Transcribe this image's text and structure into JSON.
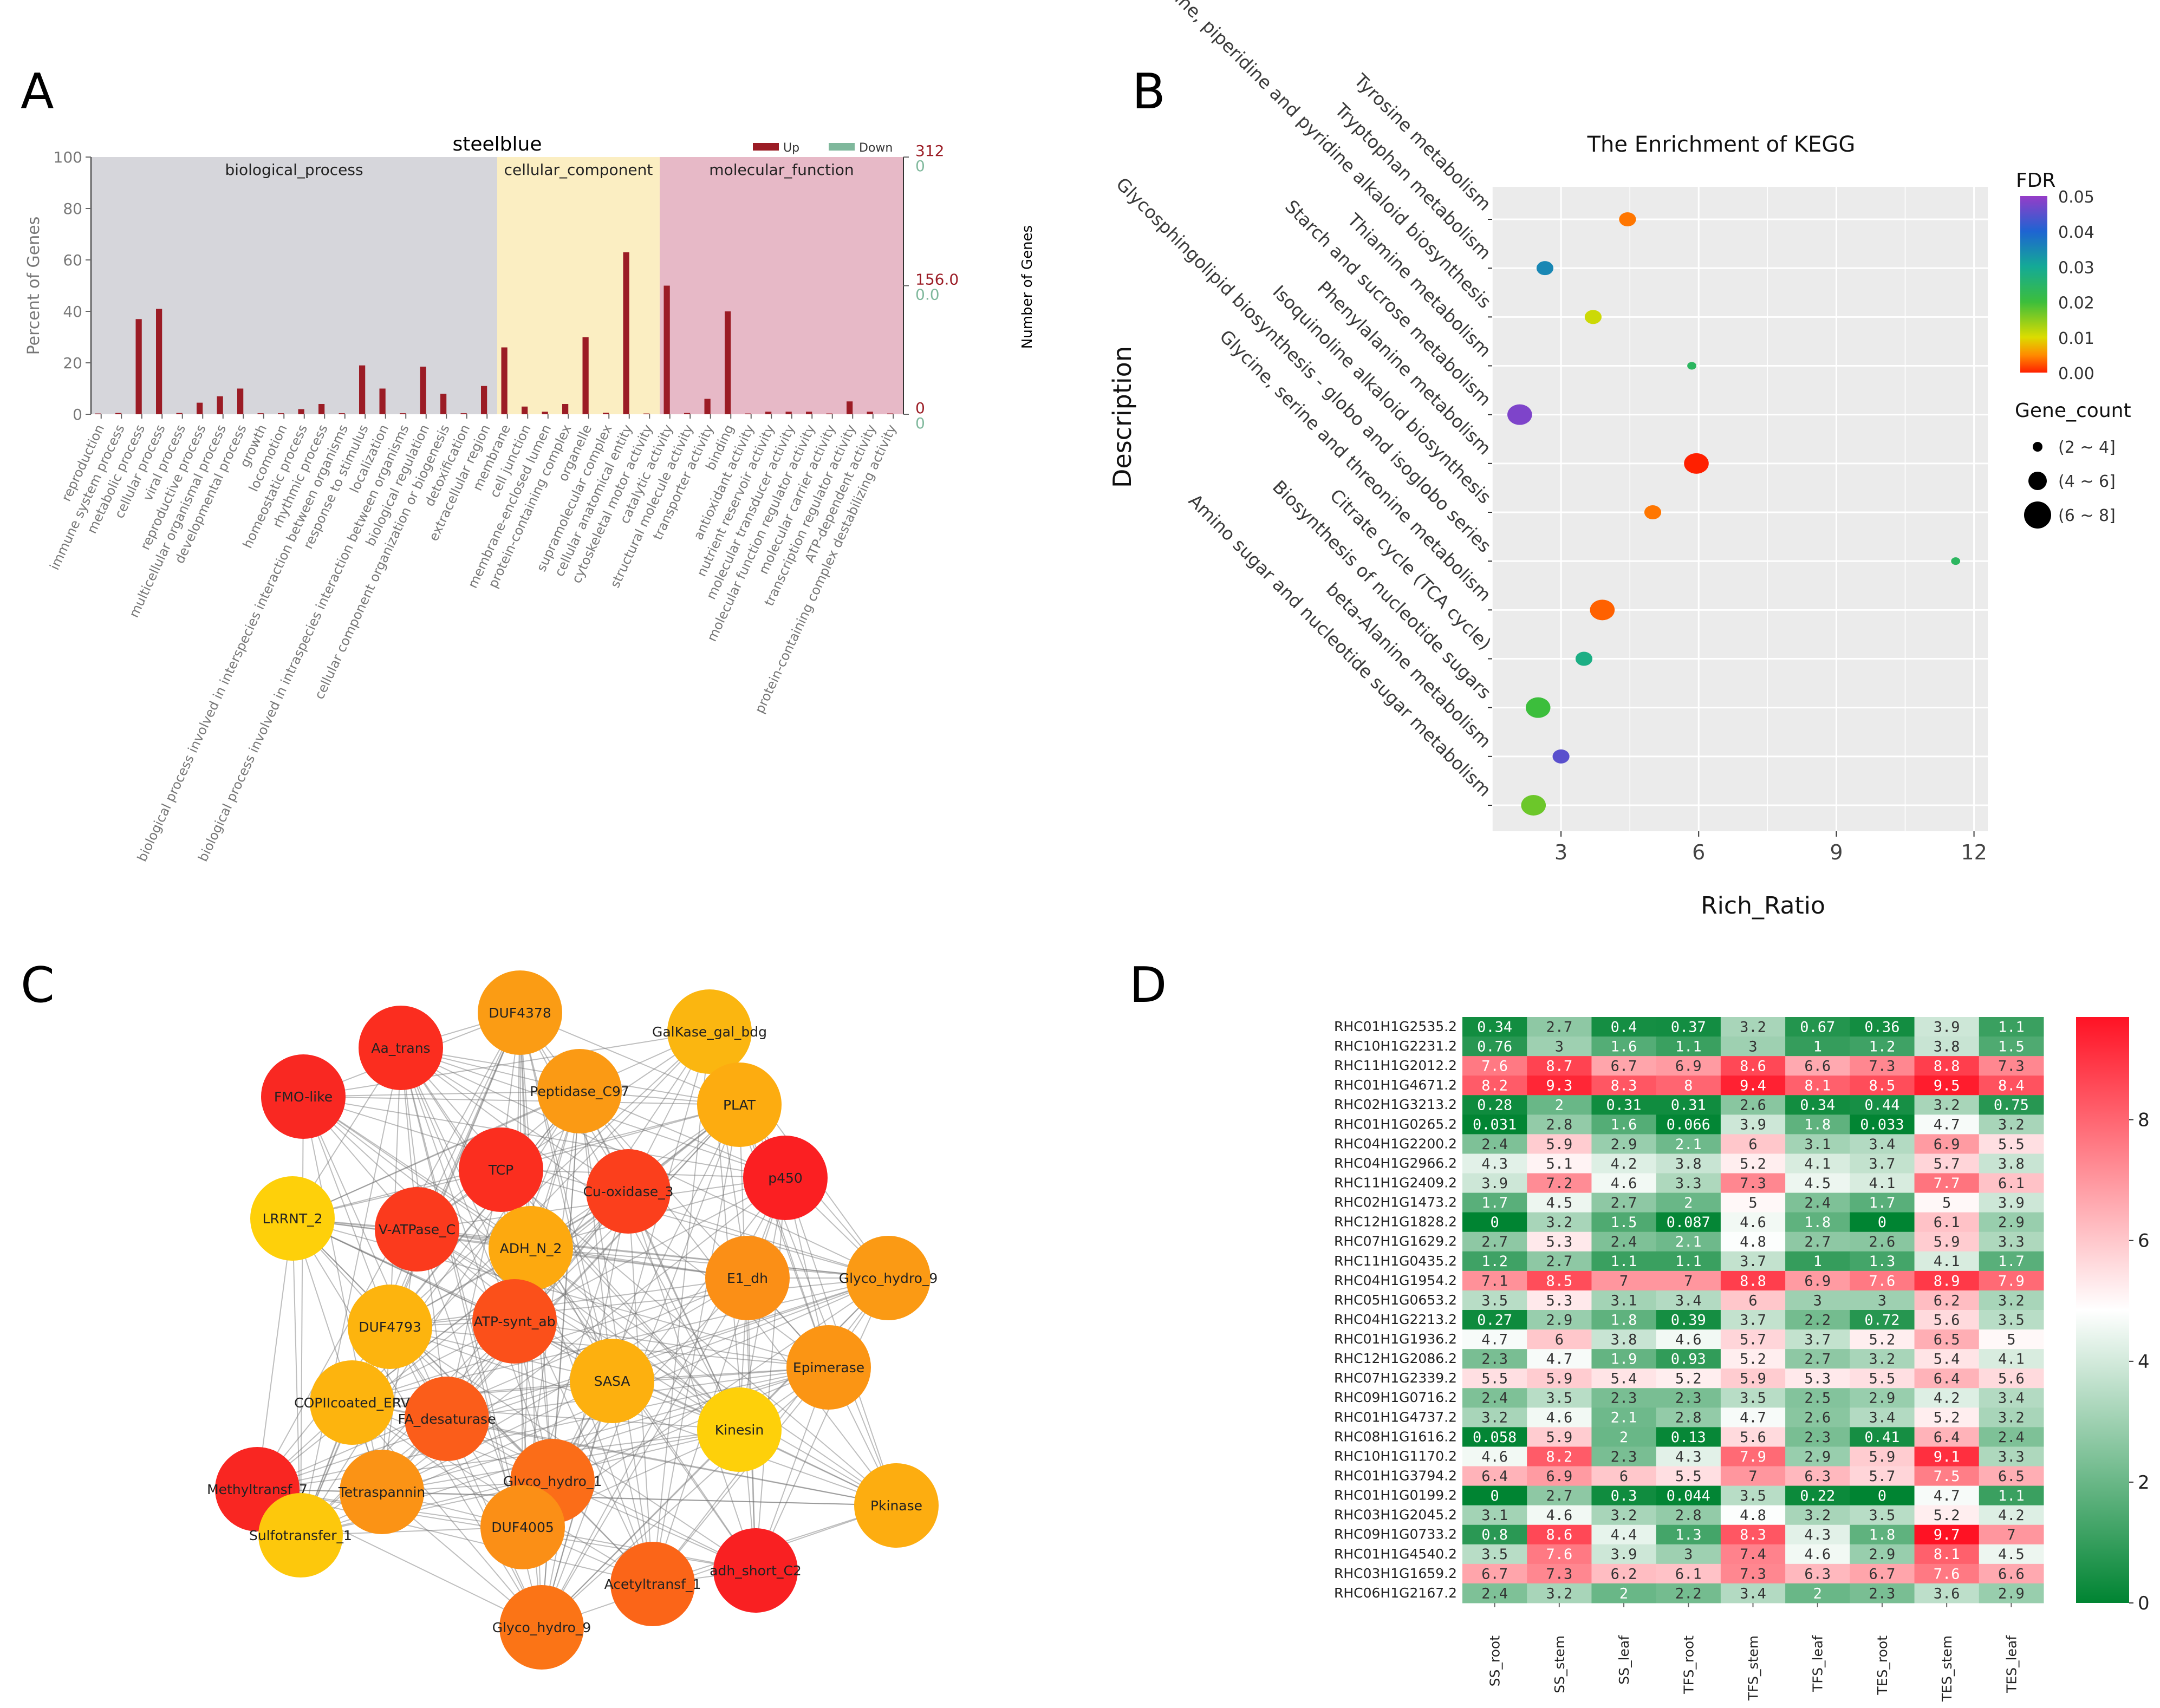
{
  "figure": {
    "panel_labels": [
      "A",
      "B",
      "C",
      "D"
    ]
  },
  "chart_data": [
    {
      "panel": "A",
      "type": "bar",
      "title": "steelblue",
      "ylabel": "Percent of Genes",
      "ylabel_right": "Number of Genes",
      "ylim": [
        0,
        100
      ],
      "yticks": [
        0,
        20,
        40,
        60,
        80,
        100
      ],
      "right_ticks": [
        {
          "value": 100,
          "up": "312",
          "down": "0"
        },
        {
          "value": 50,
          "up": "156.0",
          "down": "0.0"
        },
        {
          "value": 0,
          "up": "0",
          "down": "0"
        }
      ],
      "legend": [
        {
          "name": "Up",
          "color": "#9b1c25"
        },
        {
          "name": "Down",
          "color": "#7fb89c"
        }
      ],
      "colors": {
        "up": "#9b1c25",
        "down": "#7fb89c",
        "biological_process": "#d6d6db",
        "cellular_component": "#fbeec2",
        "molecular_function": "#e7b9c7"
      },
      "sections": [
        {
          "name": "biological_process",
          "start": 0,
          "end": 19
        },
        {
          "name": "cellular_component",
          "start": 20,
          "end": 27
        },
        {
          "name": "molecular_function",
          "start": 28,
          "end": 39
        }
      ],
      "categories": [
        "reproduction",
        "immune system process",
        "metabolic process",
        "cellular process",
        "viral process",
        "reproductive process",
        "multicellular organismal process",
        "developmental process",
        "growth",
        "locomotion",
        "homeostatic process",
        "rhythmic process",
        "biological process involved in interspecies interaction between organisms",
        "response to stimulus",
        "localization",
        "biological process involved in intraspecies interaction between organisms",
        "biological regulation",
        "cellular component organization or biogenesis",
        "detoxification",
        "extracellular region",
        "membrane",
        "cell junction",
        "membrane-enclosed lumen",
        "protein-containing complex",
        "organelle",
        "supramolecular complex",
        "cellular anatomical entity",
        "cytoskeletal motor activity",
        "catalytic activity",
        "structural molecule activity",
        "transporter activity",
        "binding",
        "antioxidant activity",
        "nutrient reservoir activity",
        "molecular transducer activity",
        "molecular function regulator activity",
        "molecular carrier activity",
        "transcription regulator activity",
        "ATP-dependent activity",
        "protein-containing complex destabilizing activity"
      ],
      "series": [
        {
          "name": "Up",
          "values": [
            0.3,
            0.5,
            37,
            41,
            0.5,
            4.5,
            7,
            10,
            0.4,
            0.4,
            2,
            4,
            0.4,
            19,
            10,
            0.4,
            18.5,
            8,
            0.4,
            11,
            26,
            3,
            1,
            4,
            30,
            0.6,
            63,
            0.3,
            50,
            0.5,
            6,
            40,
            0.3,
            1,
            1,
            1,
            0.3,
            5,
            1,
            0.3
          ]
        },
        {
          "name": "Down",
          "values": [
            0,
            0,
            0,
            0,
            0,
            0,
            0,
            0,
            0,
            0,
            0,
            0,
            0,
            0,
            0,
            0,
            0,
            0,
            0,
            0,
            0,
            0,
            0,
            0,
            0,
            0,
            0,
            0,
            0,
            0,
            0,
            0,
            0,
            0,
            0,
            0,
            0,
            0,
            0,
            0
          ]
        }
      ]
    },
    {
      "panel": "B",
      "type": "scatter",
      "title": "The Enrichment of KEGG",
      "xlabel": "Rich_Ratio",
      "ylabel": "Description",
      "xlim": [
        1.5,
        12.3
      ],
      "xticks": [
        3,
        6,
        9,
        12
      ],
      "color_legend": {
        "title": "FDR",
        "ticks": [
          "0.05",
          "0.04",
          "0.03",
          "0.02",
          "0.01",
          "0.00"
        ]
      },
      "size_legend": {
        "title": "Gene_count",
        "items": [
          "(2 ~ 4]",
          "(4 ~ 6]",
          "(6 ~ 8]"
        ]
      },
      "points": [
        {
          "label": "Tyrosine metabolism",
          "x": 4.45,
          "count": 4,
          "fdr": 0.004
        },
        {
          "label": "Tryptophan metabolism",
          "x": 2.65,
          "count": 4,
          "fdr": 0.035
        },
        {
          "label": "Tropane, piperidine and pyridine alkaloid biosynthesis",
          "x": 3.7,
          "count": 4,
          "fdr": 0.011
        },
        {
          "label": "Thiamine metabolism",
          "x": 5.85,
          "count": 2,
          "fdr": 0.024
        },
        {
          "label": "Starch and sucrose metabolism",
          "x": 2.1,
          "count": 6,
          "fdr": 0.048
        },
        {
          "label": "Phenylalanine metabolism",
          "x": 5.95,
          "count": 6,
          "fdr": 0.0
        },
        {
          "label": "Isoquinoline alkaloid biosynthesis",
          "x": 5.0,
          "count": 4,
          "fdr": 0.004
        },
        {
          "label": "Glycosphingolipid biosynthesis - globo and isoglobo series",
          "x": 11.6,
          "count": 2,
          "fdr": 0.024
        },
        {
          "label": "Glycine, serine and threonine metabolism",
          "x": 3.9,
          "count": 6,
          "fdr": 0.003
        },
        {
          "label": "Citrate cycle (TCA cycle)",
          "x": 3.5,
          "count": 4,
          "fdr": 0.028
        },
        {
          "label": "Biosynthesis of nucleotide sugars",
          "x": 2.5,
          "count": 6,
          "fdr": 0.02
        },
        {
          "label": "beta-Alanine metabolism",
          "x": 3.0,
          "count": 4,
          "fdr": 0.045
        },
        {
          "label": "Amino sugar and nucleotide sugar metabolism",
          "x": 2.4,
          "count": 6,
          "fdr": 0.017
        }
      ]
    },
    {
      "panel": "C",
      "type": "network",
      "nodes": [
        {
          "name": "DUF4378",
          "color": "#fb9c14"
        },
        {
          "name": "Aa_trans",
          "color": "#fb2d1f"
        },
        {
          "name": "GalKase_gal_bdg",
          "color": "#fbb610"
        },
        {
          "name": "FMO-like",
          "color": "#f92822"
        },
        {
          "name": "Peptidase_C97",
          "color": "#fb9a14"
        },
        {
          "name": "PLAT",
          "color": "#fdac10"
        },
        {
          "name": "TCP",
          "color": "#fb2e1f"
        },
        {
          "name": "Cu-oxidase_3",
          "color": "#fb3f1c"
        },
        {
          "name": "p450",
          "color": "#fb1f22"
        },
        {
          "name": "LRRNT_2",
          "color": "#fed00a"
        },
        {
          "name": "V-ATPase_C",
          "color": "#fb3a1d"
        },
        {
          "name": "ADH_N_2",
          "color": "#fda90f"
        },
        {
          "name": "E1_dh",
          "color": "#fb8f16"
        },
        {
          "name": "Glyco_hydro_9",
          "color": "#fb9a14"
        },
        {
          "name": "DUF4793",
          "color": "#fdb40e"
        },
        {
          "name": "ATP-synt_ab",
          "color": "#fb501a"
        },
        {
          "name": "SASA",
          "color": "#fdb00f"
        },
        {
          "name": "Epimerase",
          "color": "#fb9514"
        },
        {
          "name": "COPIIcoated_ERV",
          "color": "#fdb40e"
        },
        {
          "name": "FA_desaturase",
          "color": "#fb5d1a"
        },
        {
          "name": "Kinesin",
          "color": "#fed00a"
        },
        {
          "name": "Methyltransf_7",
          "color": "#f92622"
        },
        {
          "name": "Glyco_hydro_1",
          "color": "#fb6d18"
        },
        {
          "name": "Tetraspannin",
          "color": "#fb9315"
        },
        {
          "name": "Pkinase",
          "color": "#fdad10"
        },
        {
          "name": "Sulfotransfer_1",
          "color": "#fdc80c"
        },
        {
          "name": "DUF4005",
          "color": "#fb8f16"
        },
        {
          "name": "adh_short_C2",
          "color": "#f92022"
        },
        {
          "name": "Acetyltransf_1",
          "color": "#fb6518"
        },
        {
          "name": "Glyco_hydro_9",
          "color": "#fb7416"
        }
      ]
    },
    {
      "panel": "D",
      "type": "heatmap",
      "columns": [
        "SS_root",
        "SS_stem",
        "SS_leaf",
        "TFS_root",
        "TFS_stem",
        "TFS_leaf",
        "TES_root",
        "TES_stem",
        "TES_leaf"
      ],
      "colorbar_ticks": [
        "0",
        "2",
        "4",
        "6",
        "8"
      ],
      "range": [
        0,
        9.7
      ],
      "rows": [
        {
          "name": "RHC01H1G2535.2",
          "values": [
            "0.34",
            "2.7",
            "0.4",
            "0.37",
            "3.2",
            "0.67",
            "0.36",
            "3.9",
            "1.1"
          ]
        },
        {
          "name": "RHC10H1G2231.2",
          "values": [
            "0.76",
            "3",
            "1.6",
            "1.1",
            "3",
            "1",
            "1.2",
            "3.8",
            "1.5"
          ]
        },
        {
          "name": "RHC11H1G2012.2",
          "values": [
            "7.6",
            "8.7",
            "6.7",
            "6.9",
            "8.6",
            "6.6",
            "7.3",
            "8.8",
            "7.3"
          ]
        },
        {
          "name": "RHC01H1G4671.2",
          "values": [
            "8.2",
            "9.3",
            "8.3",
            "8",
            "9.4",
            "8.1",
            "8.5",
            "9.5",
            "8.4"
          ]
        },
        {
          "name": "RHC02H1G3213.2",
          "values": [
            "0.28",
            "2",
            "0.31",
            "0.31",
            "2.6",
            "0.34",
            "0.44",
            "3.2",
            "0.75"
          ]
        },
        {
          "name": "RHC01H1G0265.2",
          "values": [
            "0.031",
            "2.8",
            "1.6",
            "0.066",
            "3.9",
            "1.8",
            "0.033",
            "4.7",
            "3.2"
          ]
        },
        {
          "name": "RHC04H1G2200.2",
          "values": [
            "2.4",
            "5.9",
            "2.9",
            "2.1",
            "6",
            "3.1",
            "3.4",
            "6.9",
            "5.5"
          ]
        },
        {
          "name": "RHC04H1G2966.2",
          "values": [
            "4.3",
            "5.1",
            "4.2",
            "3.8",
            "5.2",
            "4.1",
            "3.7",
            "5.7",
            "3.8"
          ]
        },
        {
          "name": "RHC11H1G2409.2",
          "values": [
            "3.9",
            "7.2",
            "4.6",
            "3.3",
            "7.3",
            "4.5",
            "4.1",
            "7.7",
            "6.1"
          ]
        },
        {
          "name": "RHC02H1G1473.2",
          "values": [
            "1.7",
            "4.5",
            "2.7",
            "2",
            "5",
            "2.4",
            "1.7",
            "5",
            "3.9"
          ]
        },
        {
          "name": "RHC12H1G1828.2",
          "values": [
            "0",
            "3.2",
            "1.5",
            "0.087",
            "4.6",
            "1.8",
            "0",
            "6.1",
            "2.9"
          ]
        },
        {
          "name": "RHC07H1G1629.2",
          "values": [
            "2.7",
            "5.3",
            "2.4",
            "2.1",
            "4.8",
            "2.7",
            "2.6",
            "5.9",
            "3.3"
          ]
        },
        {
          "name": "RHC11H1G0435.2",
          "values": [
            "1.2",
            "2.7",
            "1.1",
            "1.1",
            "3.7",
            "1",
            "1.3",
            "4.1",
            "1.7"
          ]
        },
        {
          "name": "RHC04H1G1954.2",
          "values": [
            "7.1",
            "8.5",
            "7",
            "7",
            "8.8",
            "6.9",
            "7.6",
            "8.9",
            "7.9"
          ]
        },
        {
          "name": "RHC05H1G0653.2",
          "values": [
            "3.5",
            "5.3",
            "3.1",
            "3.4",
            "6",
            "3",
            "3",
            "6.2",
            "3.2"
          ]
        },
        {
          "name": "RHC04H1G2213.2",
          "values": [
            "0.27",
            "2.9",
            "1.8",
            "0.39",
            "3.7",
            "2.2",
            "0.72",
            "5.6",
            "3.5"
          ]
        },
        {
          "name": "RHC01H1G1936.2",
          "values": [
            "4.7",
            "6",
            "3.8",
            "4.6",
            "5.7",
            "3.7",
            "5.2",
            "6.5",
            "5"
          ]
        },
        {
          "name": "RHC12H1G2086.2",
          "values": [
            "2.3",
            "4.7",
            "1.9",
            "0.93",
            "5.2",
            "2.7",
            "3.2",
            "5.4",
            "4.1"
          ]
        },
        {
          "name": "RHC07H1G2339.2",
          "values": [
            "5.5",
            "5.9",
            "5.4",
            "5.2",
            "5.9",
            "5.3",
            "5.5",
            "6.4",
            "5.6"
          ]
        },
        {
          "name": "RHC09H1G0716.2",
          "values": [
            "2.4",
            "3.5",
            "2.3",
            "2.3",
            "3.5",
            "2.5",
            "2.9",
            "4.2",
            "3.4"
          ]
        },
        {
          "name": "RHC01H1G4737.2",
          "values": [
            "3.2",
            "4.6",
            "2.1",
            "2.8",
            "4.7",
            "2.6",
            "3.4",
            "5.2",
            "3.2"
          ]
        },
        {
          "name": "RHC08H1G1616.2",
          "values": [
            "0.058",
            "5.9",
            "2",
            "0.13",
            "5.6",
            "2.3",
            "0.41",
            "6.4",
            "2.4"
          ]
        },
        {
          "name": "RHC10H1G1170.2",
          "values": [
            "4.6",
            "8.2",
            "2.3",
            "4.3",
            "7.9",
            "2.9",
            "5.9",
            "9.1",
            "3.3"
          ]
        },
        {
          "name": "RHC01H1G3794.2",
          "values": [
            "6.4",
            "6.9",
            "6",
            "5.5",
            "7",
            "6.3",
            "5.7",
            "7.5",
            "6.5"
          ]
        },
        {
          "name": "RHC01H1G0199.2",
          "values": [
            "0",
            "2.7",
            "0.3",
            "0.044",
            "3.5",
            "0.22",
            "0",
            "4.7",
            "1.1"
          ]
        },
        {
          "name": "RHC03H1G2045.2",
          "values": [
            "3.1",
            "4.6",
            "3.2",
            "2.8",
            "4.8",
            "3.2",
            "3.5",
            "5.2",
            "4.2"
          ]
        },
        {
          "name": "RHC09H1G0733.2",
          "values": [
            "0.8",
            "8.6",
            "4.4",
            "1.3",
            "8.3",
            "4.3",
            "1.8",
            "9.7",
            "7"
          ]
        },
        {
          "name": "RHC01H1G4540.2",
          "values": [
            "3.5",
            "7.6",
            "3.9",
            "3",
            "7.4",
            "4.6",
            "2.9",
            "8.1",
            "4.5"
          ]
        },
        {
          "name": "RHC03H1G1659.2",
          "values": [
            "6.7",
            "7.3",
            "6.2",
            "6.1",
            "7.3",
            "6.3",
            "6.7",
            "7.6",
            "6.6"
          ]
        },
        {
          "name": "RHC06H1G2167.2",
          "values": [
            "2.4",
            "3.2",
            "2",
            "2.2",
            "3.4",
            "2",
            "2.3",
            "3.6",
            "2.9"
          ]
        }
      ]
    }
  ]
}
